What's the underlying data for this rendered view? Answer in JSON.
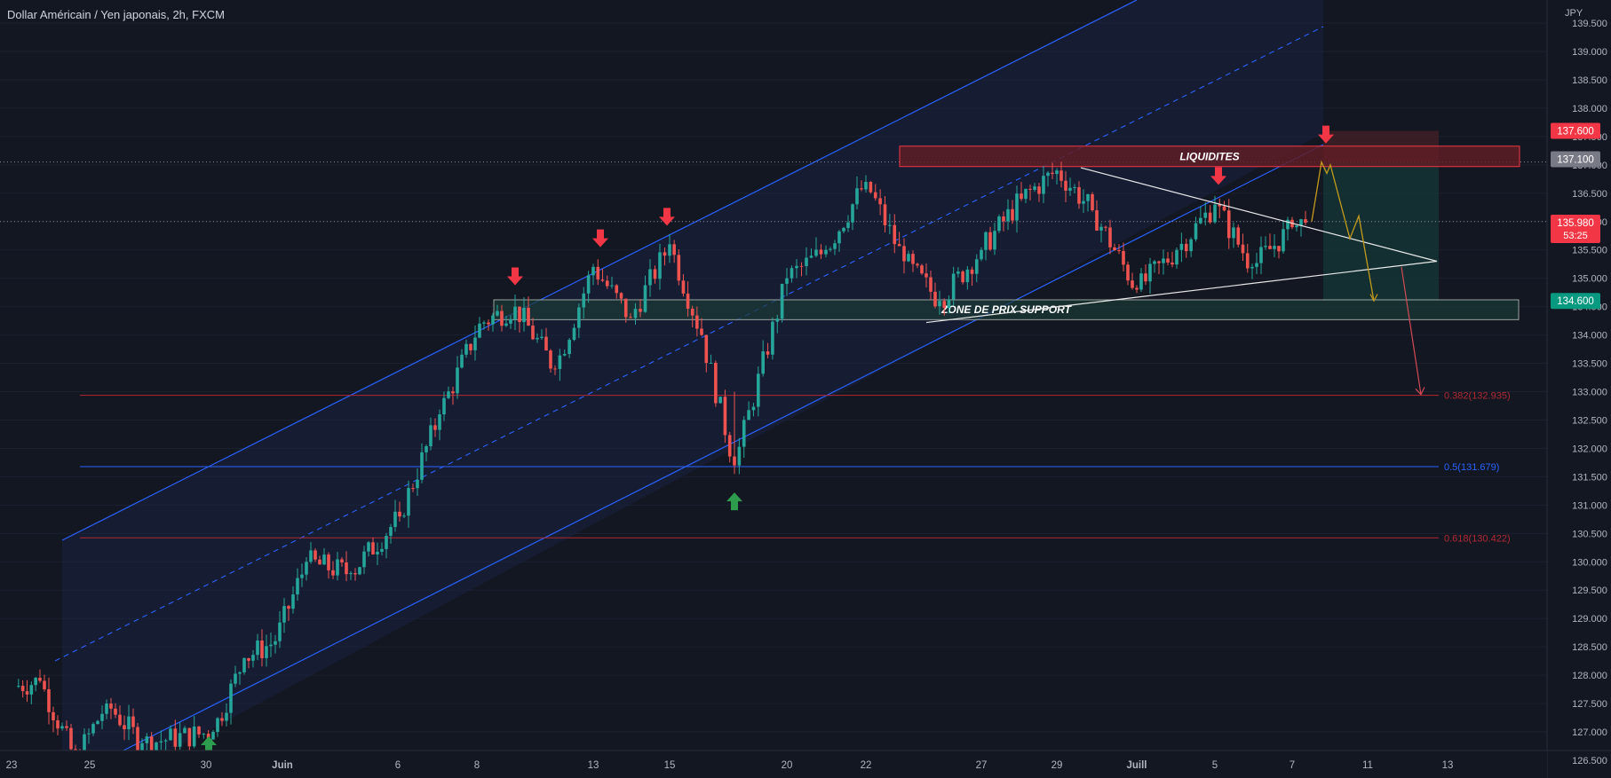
{
  "header": {
    "title": "Dollar Américain / Yen japonais, 2h, FXCM"
  },
  "colors": {
    "background": "#131722",
    "up": "#26a69a",
    "down": "#ef5350",
    "channel": "#2962ff",
    "fib_red": "#b22833",
    "fib_blue": "#2962ff",
    "resistance_zone": "#f23645",
    "support_zone": "#22ab94",
    "projection": "#c49a1c",
    "arrow_down": "#f23645",
    "arrow_up": "#2e9c4d"
  },
  "chart_data": {
    "type": "candlestick",
    "symbol": "USDJPY",
    "timeframe": "2h",
    "currency_label": "JPY",
    "ylim": [
      126.1,
      139.7
    ],
    "y_ticks": [
      "126.500",
      "127.000",
      "127.500",
      "128.000",
      "128.500",
      "129.000",
      "129.500",
      "130.000",
      "130.500",
      "131.000",
      "131.500",
      "132.000",
      "132.500",
      "133.000",
      "133.500",
      "134.000",
      "134.500",
      "135.000",
      "135.500",
      "136.000",
      "136.500",
      "137.000",
      "137.500",
      "138.000",
      "138.500",
      "139.000",
      "139.500"
    ],
    "x_ticks": [
      "23",
      "25",
      "30",
      "Juin",
      "6",
      "8",
      "13",
      "15",
      "20",
      "22",
      "27",
      "29",
      "Juill",
      "5",
      "7",
      "11",
      "13"
    ],
    "key_points": [
      {
        "date": "23",
        "price": 127.8
      },
      {
        "date": "24",
        "price": 127.9
      },
      {
        "date": "25",
        "price": 126.5
      },
      {
        "date": "26",
        "price": 127.5
      },
      {
        "date": "27",
        "price": 126.8
      },
      {
        "date": "30",
        "price": 127.0
      },
      {
        "date": "31",
        "price": 128.3
      },
      {
        "date": "1",
        "price": 128.6
      },
      {
        "date": "2",
        "price": 130.0
      },
      {
        "date": "3",
        "price": 129.8
      },
      {
        "date": "6",
        "price": 130.8
      },
      {
        "date": "7",
        "price": 132.6
      },
      {
        "date": "8",
        "price": 134.2
      },
      {
        "date": "9",
        "price": 134.5
      },
      {
        "date": "10",
        "price": 133.4
      },
      {
        "date": "13",
        "price": 135.2
      },
      {
        "date": "14",
        "price": 134.3
      },
      {
        "date": "15",
        "price": 135.6
      },
      {
        "date": "16",
        "price": 134.0
      },
      {
        "date": "17",
        "price": 131.7
      },
      {
        "date": "20",
        "price": 135.0
      },
      {
        "date": "21",
        "price": 135.5
      },
      {
        "date": "22",
        "price": 136.7
      },
      {
        "date": "23",
        "price": 135.3
      },
      {
        "date": "24",
        "price": 134.6
      },
      {
        "date": "27",
        "price": 135.5
      },
      {
        "date": "28",
        "price": 136.4
      },
      {
        "date": "29",
        "price": 136.9
      },
      {
        "date": "30",
        "price": 136.2
      },
      {
        "date": "1",
        "price": 134.8
      },
      {
        "date": "4",
        "price": 135.5
      },
      {
        "date": "5",
        "price": 136.3
      },
      {
        "date": "6",
        "price": 135.2
      },
      {
        "date": "7",
        "price": 135.9
      },
      {
        "date": "8",
        "price": 135.98
      }
    ],
    "price_labels": [
      {
        "price": 137.6,
        "text": "137.600",
        "color": "#f23645"
      },
      {
        "price": 137.1,
        "text": "137.100",
        "color": "#787b86"
      },
      {
        "price": 135.98,
        "text": "135.980",
        "sub": "53:25",
        "color": "#f23645"
      },
      {
        "price": 134.6,
        "text": "134.600",
        "color": "#089981"
      }
    ],
    "fib_levels": [
      {
        "ratio": "0.382",
        "price": 132.935,
        "text": "0.382(132.935)",
        "color": "#b22833"
      },
      {
        "ratio": "0.5",
        "price": 131.679,
        "text": "0.5(131.679)",
        "color": "#2962ff"
      },
      {
        "ratio": "0.618",
        "price": 130.422,
        "text": "0.618(130.422)",
        "color": "#b22833"
      }
    ],
    "zones": [
      {
        "text": "LIQUIDITES",
        "low": 136.97,
        "high": 137.33,
        "kind": "resistance"
      },
      {
        "text": "ZONE DE PRIX SUPPORT",
        "low": 134.27,
        "high": 134.62,
        "kind": "support"
      }
    ],
    "markers": [
      {
        "type": "down",
        "date": "9",
        "price": 135.0
      },
      {
        "type": "down",
        "date": "13",
        "price": 135.6
      },
      {
        "type": "down",
        "date": "15",
        "price": 135.95
      },
      {
        "type": "up",
        "date": "17",
        "price": 131.1
      },
      {
        "type": "down",
        "date": "5",
        "price": 136.75
      },
      {
        "type": "down",
        "date": "8",
        "price": 137.45
      },
      {
        "type": "up",
        "date": "30",
        "price": 126.7
      }
    ],
    "dotted_levels": [
      137.05,
      136.0,
      126.45
    ]
  }
}
